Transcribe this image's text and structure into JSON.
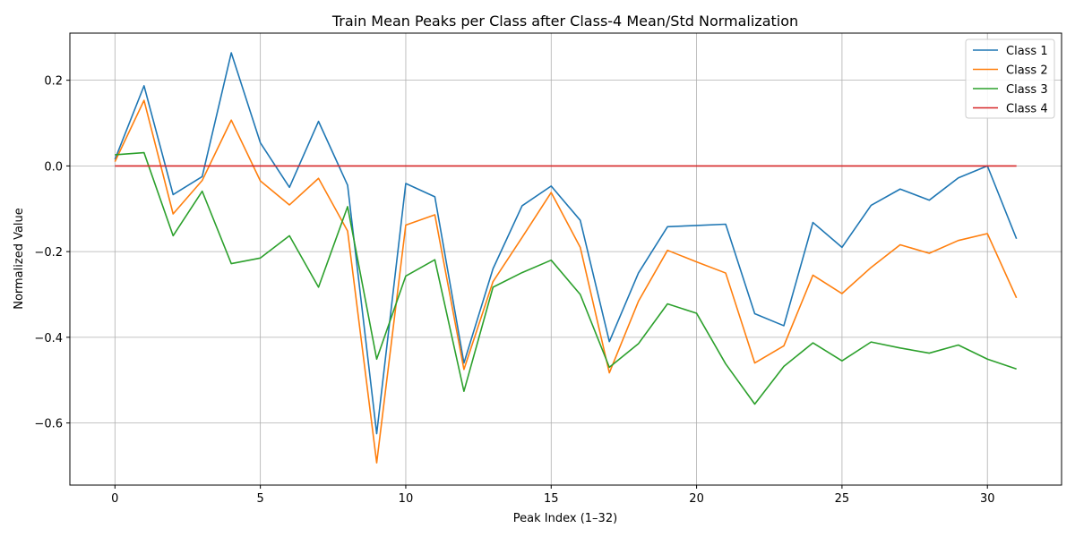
{
  "chart_data": {
    "type": "line",
    "title": "Train Mean Peaks per Class after Class-4 Mean/Std Normalization",
    "xlabel": "Peak Index (1–32)",
    "ylabel": "Normalized Value",
    "xlim": [
      -1.55,
      32.55
    ],
    "ylim": [
      -0.745,
      0.31
    ],
    "xticks": [
      0,
      5,
      10,
      15,
      20,
      25,
      30
    ],
    "yticks": [
      -0.6,
      -0.4,
      -0.2,
      0.0,
      0.2
    ],
    "ytick_labels": [
      "−0.6",
      "−0.4",
      "−0.2",
      "0.0",
      "0.2"
    ],
    "grid": true,
    "legend_position": "top-right",
    "x": [
      0,
      1,
      2,
      3,
      4,
      5,
      6,
      7,
      8,
      9,
      10,
      11,
      12,
      13,
      14,
      15,
      16,
      17,
      18,
      19,
      20,
      21,
      22,
      23,
      24,
      25,
      26,
      27,
      28,
      29,
      30,
      31
    ],
    "series": [
      {
        "name": "Class 1",
        "color": "#1f77b4",
        "values": [
          0.015,
          0.187,
          -0.067,
          -0.025,
          0.264,
          0.054,
          -0.05,
          0.104,
          -0.045,
          -0.625,
          -0.041,
          -0.072,
          -0.46,
          -0.24,
          -0.093,
          -0.047,
          -0.127,
          -0.41,
          -0.25,
          -0.142,
          -0.139,
          -0.136,
          -0.345,
          -0.373,
          -0.132,
          -0.19,
          -0.092,
          -0.054,
          -0.08,
          -0.028,
          0.0,
          -0.17
        ]
      },
      {
        "name": "Class 2",
        "color": "#ff7f0e",
        "values": [
          0.01,
          0.153,
          -0.112,
          -0.034,
          0.107,
          -0.035,
          -0.091,
          -0.029,
          -0.152,
          -0.693,
          -0.138,
          -0.114,
          -0.475,
          -0.27,
          -0.167,
          -0.062,
          -0.19,
          -0.483,
          -0.316,
          -0.197,
          -0.224,
          -0.25,
          -0.46,
          -0.42,
          -0.255,
          -0.298,
          -0.237,
          -0.184,
          -0.204,
          -0.174,
          -0.158,
          -0.308
        ]
      },
      {
        "name": "Class 3",
        "color": "#2ca02c",
        "values": [
          0.026,
          0.031,
          -0.163,
          -0.059,
          -0.228,
          -0.215,
          -0.163,
          -0.283,
          -0.095,
          -0.451,
          -0.257,
          -0.219,
          -0.526,
          -0.283,
          -0.249,
          -0.22,
          -0.3,
          -0.47,
          -0.415,
          -0.322,
          -0.344,
          -0.462,
          -0.556,
          -0.468,
          -0.413,
          -0.455,
          -0.411,
          -0.425,
          -0.437,
          -0.418,
          -0.451,
          -0.474
        ]
      },
      {
        "name": "Class 4",
        "color": "#d62728",
        "values": [
          0,
          0,
          0,
          0,
          0,
          0,
          0,
          0,
          0,
          0,
          0,
          0,
          0,
          0,
          0,
          0,
          0,
          0,
          0,
          0,
          0,
          0,
          0,
          0,
          0,
          0,
          0,
          0,
          0,
          0,
          0,
          0
        ]
      }
    ]
  }
}
